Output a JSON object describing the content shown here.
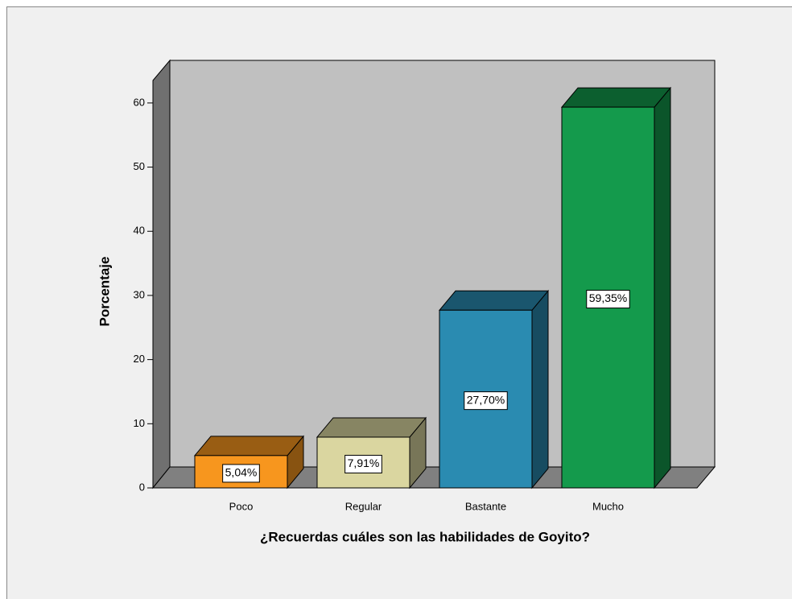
{
  "chart_data": {
    "type": "bar",
    "x_label": "¿Recuerdas cuáles son las habilidades de Goyito?",
    "y_label": "Porcentaje",
    "categories": [
      "Poco",
      "Regular",
      "Bastante",
      "Mucho"
    ],
    "values": [
      5.04,
      7.91,
      27.7,
      59.35
    ],
    "value_labels": [
      "5,04%",
      "7,91%",
      "27,70%",
      "59,35%"
    ],
    "colors": [
      "#f7961e",
      "#dad6a0",
      "#2a8bb1",
      "#149a4c"
    ],
    "ylim": [
      0,
      63.5
    ],
    "yticks": [
      0,
      10,
      20,
      30,
      40,
      50,
      60
    ]
  }
}
